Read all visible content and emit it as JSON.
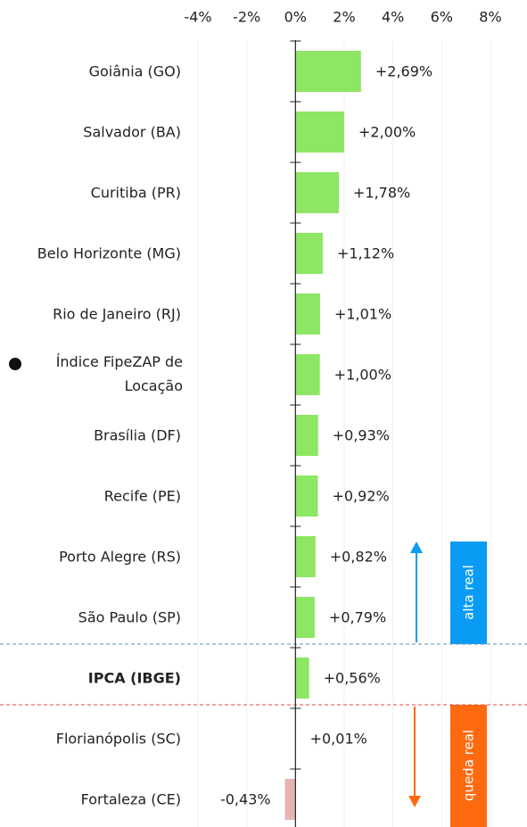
{
  "chart_data": {
    "type": "hbar",
    "categories": [
      "Goiânia (GO)",
      "Salvador (BA)",
      "Curitiba (PR)",
      "Belo Horizonte (MG)",
      "Rio de Janeiro (RJ)",
      "Índice FipeZAP de Locação",
      "Brasília (DF)",
      "Recife (PE)",
      "Porto Alegre (RS)",
      "São Paulo (SP)",
      "IPCA (IBGE)",
      "Florianópolis (SC)",
      "Fortaleza (CE)"
    ],
    "values": [
      2.69,
      2.0,
      1.78,
      1.12,
      1.01,
      1.0,
      0.93,
      0.92,
      0.82,
      0.79,
      0.56,
      0.01,
      -0.43
    ],
    "value_labels": [
      "+2,69%",
      "+2,00%",
      "+1,78%",
      "+1,12%",
      "+1,01%",
      "+1,00%",
      "+0,93%",
      "+0,92%",
      "+0,82%",
      "+0,79%",
      "+0,56%",
      "+0,01%",
      "-0,43%"
    ],
    "colors": [
      "#8de664",
      "#8de664",
      "#8de664",
      "#8de664",
      "#8de664",
      "#8de664",
      "#8de664",
      "#8de664",
      "#8de664",
      "#8de664",
      "#8de664",
      "#8de664",
      "#e6b4b4"
    ],
    "xlim": [
      -4,
      8
    ],
    "xticks": [
      {
        "value": -4,
        "label": "-4%"
      },
      {
        "value": -2,
        "label": "-2%"
      },
      {
        "value": 0,
        "label": "0%"
      },
      {
        "value": 2,
        "label": "2%"
      },
      {
        "value": 4,
        "label": "4%"
      },
      {
        "value": 6,
        "label": "6%"
      },
      {
        "value": 8,
        "label": "8%"
      }
    ],
    "grid": true,
    "annotations": [
      "alta real",
      "queda real"
    ]
  }
}
